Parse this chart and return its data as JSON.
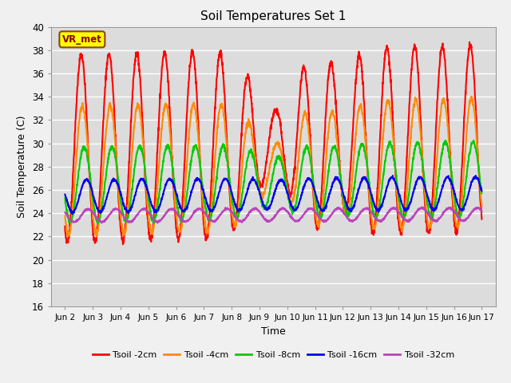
{
  "title": "Soil Temperatures Set 1",
  "xlabel": "Time",
  "ylabel": "Soil Temperature (C)",
  "ylim": [
    16,
    40
  ],
  "yticks": [
    16,
    18,
    20,
    22,
    24,
    26,
    28,
    30,
    32,
    34,
    36,
    38,
    40
  ],
  "xtick_labels": [
    "Jun 2",
    "Jun 3",
    "Jun 4",
    "Jun 5",
    "Jun 6",
    "Jun 7",
    "Jun 8",
    "Jun 9",
    "Jun 10",
    "Jun 11",
    "Jun 12",
    "Jun 13",
    "Jun 14",
    "Jun 15",
    "Jun 16",
    "Jun 17"
  ],
  "xtick_positions": [
    1,
    2,
    3,
    4,
    5,
    6,
    7,
    8,
    9,
    10,
    11,
    12,
    13,
    14,
    15,
    16
  ],
  "series": {
    "Tsoil -2cm": {
      "color": "#ff0000",
      "lw": 1.5
    },
    "Tsoil -4cm": {
      "color": "#ff8c00",
      "lw": 1.5
    },
    "Tsoil -8cm": {
      "color": "#00cc00",
      "lw": 1.5
    },
    "Tsoil -16cm": {
      "color": "#0000ee",
      "lw": 1.5
    },
    "Tsoil -32cm": {
      "color": "#bb44bb",
      "lw": 1.5
    }
  },
  "plot_bg": "#dcdcdc",
  "annotation_text": "VR_met",
  "annotation_bbox_facecolor": "#ffff00",
  "annotation_bbox_edgecolor": "#8b4513",
  "n_points": 2000
}
